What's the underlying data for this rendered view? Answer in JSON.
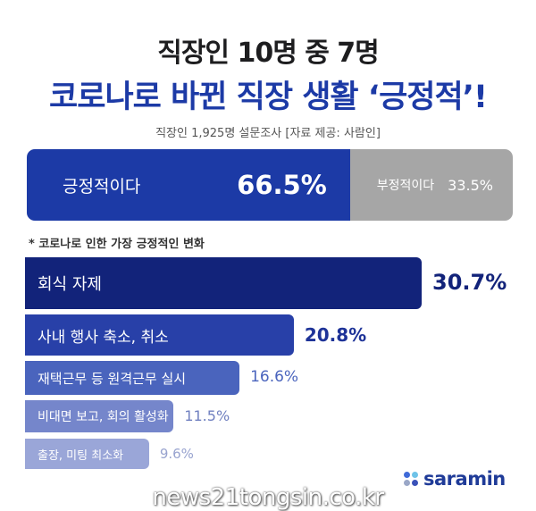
{
  "header": {
    "title_line1": "직장인 10명 중 7명",
    "title_line2": "코로나로 바뀐 직장 생활 ‘긍정적’!",
    "subtitle": "직장인 1,925명 설문조사 [자료 제공: 사람인]"
  },
  "footnote": "* 코로나로 인한 가장 긍정적인 변화",
  "brand": {
    "name": "saramin",
    "dot_colors": [
      "#3f6ad8",
      "#6fc3e8",
      "#9aa7c7",
      "#3a52b8"
    ]
  },
  "watermark": "news21tongsin.co.kr",
  "colors": {
    "positive": "#1c3aa6",
    "negative": "#a6a6a6"
  },
  "chart_data": [
    {
      "type": "bar",
      "orientation": "horizontal-stacked",
      "categories": [
        "긍정적이다",
        "부정적이다"
      ],
      "values": [
        66.5,
        33.5
      ],
      "value_labels": [
        "66.5%",
        "33.5%"
      ],
      "colors": [
        "#1c3aa6",
        "#a6a6a6"
      ]
    },
    {
      "type": "bar",
      "orientation": "horizontal",
      "categories": [
        "회식 자제",
        "사내 행사 축소, 취소",
        "재택근무 등 원격근무 실시",
        "비대면 보고, 회의 활성화",
        "출장, 미팅 최소화"
      ],
      "values": [
        30.7,
        20.8,
        16.6,
        11.5,
        9.6
      ],
      "value_labels": [
        "30.7%",
        "20.8%",
        "16.6%",
        "11.5%",
        "9.6%"
      ],
      "colors": [
        "#12237a",
        "#2840a8",
        "#4a64bd",
        "#7586cb",
        "#9aa6d8"
      ],
      "value_colors": [
        "#12237a",
        "#1e3398",
        "#4a64bd",
        "#7080c0",
        "#98a3cf"
      ]
    }
  ]
}
